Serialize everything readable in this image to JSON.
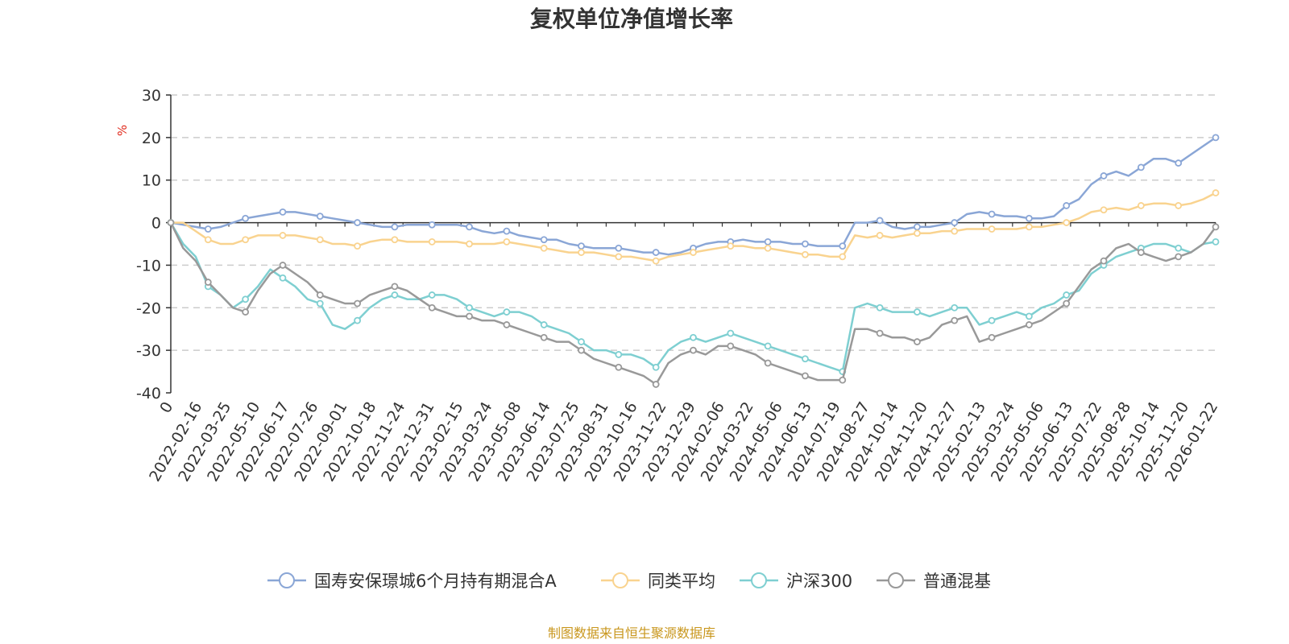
{
  "chart_data": {
    "type": "line",
    "title": "复权单位净值增长率",
    "ylabel": "%",
    "ylim": [
      -40,
      30
    ],
    "yticks": [
      30,
      20,
      10,
      0,
      -10,
      -20,
      -30,
      -40
    ],
    "grid": true,
    "legend_position": "bottom",
    "x_tick_labels": [
      "0",
      "2022-02-16",
      "2022-03-25",
      "2022-05-10",
      "2022-06-17",
      "2022-07-26",
      "2022-09-01",
      "2022-10-18",
      "2022-11-24",
      "2022-12-31",
      "2023-02-15",
      "2023-03-24",
      "2023-05-08",
      "2023-06-14",
      "2023-07-25",
      "2023-08-31",
      "2023-10-16",
      "2023-11-22",
      "2023-12-29",
      "2024-02-06",
      "2024-03-22",
      "2024-05-06",
      "2024-06-13",
      "2024-07-19",
      "2024-08-27",
      "2024-10-14",
      "2024-11-20",
      "2024-12-27",
      "2025-02-13",
      "2025-03-24",
      "2025-05-06",
      "2025-06-13",
      "2025-07-22",
      "2025-08-28",
      "2025-10-14",
      "2025-11-20",
      "2026-01-22"
    ],
    "series": [
      {
        "name": "国寿安保璟城6个月持有期混合A",
        "color": "#8aa6d6",
        "values": [
          0,
          -0.5,
          -1,
          -1.5,
          -1,
          0,
          1,
          1.5,
          2,
          2.5,
          2.5,
          2,
          1.5,
          1,
          0.5,
          0,
          -0.5,
          -1,
          -1,
          -0.5,
          -0.5,
          -0.5,
          -0.5,
          -0.5,
          -1,
          -2,
          -2.5,
          -2,
          -3,
          -3.5,
          -4,
          -4,
          -5,
          -5.5,
          -6,
          -6,
          -6,
          -6.5,
          -7,
          -7,
          -7.5,
          -7,
          -6,
          -5,
          -4.5,
          -4.5,
          -4,
          -4.5,
          -4.5,
          -4.5,
          -5,
          -5,
          -5.5,
          -5.5,
          -5.5,
          0,
          0,
          0.5,
          -1,
          -1.5,
          -1,
          -1,
          -0.5,
          0,
          2,
          2.5,
          2,
          1.5,
          1.5,
          1,
          1,
          1.5,
          4,
          5.5,
          9,
          11,
          12,
          11,
          13,
          15,
          15,
          14,
          16,
          18,
          20
        ]
      },
      {
        "name": "同类平均",
        "color": "#f9d38f",
        "values": [
          0,
          0,
          -2,
          -4,
          -5,
          -5,
          -4,
          -3,
          -3,
          -3,
          -3,
          -3.5,
          -4,
          -5,
          -5,
          -5.5,
          -4.5,
          -4,
          -4,
          -4.5,
          -4.5,
          -4.5,
          -4.5,
          -4.5,
          -5,
          -5,
          -5,
          -4.5,
          -5,
          -5.5,
          -6,
          -6.5,
          -7,
          -7,
          -7,
          -7.5,
          -8,
          -8,
          -8.5,
          -9,
          -8,
          -7.5,
          -7,
          -6.5,
          -6,
          -5.5,
          -5.5,
          -6,
          -6,
          -6.5,
          -7,
          -7.5,
          -7.5,
          -8,
          -8,
          -3,
          -3.5,
          -3,
          -3.5,
          -3,
          -2.5,
          -2.5,
          -2,
          -2,
          -1.5,
          -1.5,
          -1.5,
          -1.5,
          -1.5,
          -1,
          -1,
          -0.5,
          0,
          1,
          2.5,
          3,
          3.5,
          3,
          4,
          4.5,
          4.5,
          4,
          4.5,
          5.5,
          7
        ]
      },
      {
        "name": "沪深300",
        "color": "#7ecfd1",
        "values": [
          0,
          -5,
          -8,
          -15,
          -17,
          -20,
          -18,
          -15,
          -11,
          -13,
          -15,
          -18,
          -19,
          -24,
          -25,
          -23,
          -20,
          -18,
          -17,
          -18,
          -18,
          -17,
          -17,
          -18,
          -20,
          -21,
          -22,
          -21,
          -21,
          -22,
          -24,
          -25,
          -26,
          -28,
          -30,
          -30,
          -31,
          -31,
          -32,
          -34,
          -30,
          -28,
          -27,
          -28,
          -27,
          -26,
          -27,
          -28,
          -29,
          -30,
          -31,
          -32,
          -33,
          -34,
          -35,
          -20,
          -19,
          -20,
          -21,
          -21,
          -21,
          -22,
          -21,
          -20,
          -20,
          -24,
          -23,
          -22,
          -21,
          -22,
          -20,
          -19,
          -17,
          -16,
          -12,
          -10,
          -8,
          -7,
          -6,
          -5,
          -5,
          -6,
          -7,
          -5,
          -4.5
        ]
      },
      {
        "name": "普通混基",
        "color": "#999999",
        "values": [
          0,
          -6,
          -9,
          -14,
          -17,
          -20,
          -21,
          -16,
          -12,
          -10,
          -12,
          -14,
          -17,
          -18,
          -19,
          -19,
          -17,
          -16,
          -15,
          -16,
          -18,
          -20,
          -21,
          -22,
          -22,
          -23,
          -23,
          -24,
          -25,
          -26,
          -27,
          -28,
          -28,
          -30,
          -32,
          -33,
          -34,
          -35,
          -36,
          -38,
          -33,
          -31,
          -30,
          -31,
          -29,
          -29,
          -30,
          -31,
          -33,
          -34,
          -35,
          -36,
          -37,
          -37,
          -37,
          -25,
          -25,
          -26,
          -27,
          -27,
          -28,
          -27,
          -24,
          -23,
          -22,
          -28,
          -27,
          -26,
          -25,
          -24,
          -23,
          -21,
          -19,
          -15,
          -11,
          -9,
          -6,
          -5,
          -7,
          -8,
          -9,
          -8,
          -7,
          -5,
          -1
        ]
      }
    ]
  },
  "source_note": "制图数据来自恒生聚源数据库"
}
